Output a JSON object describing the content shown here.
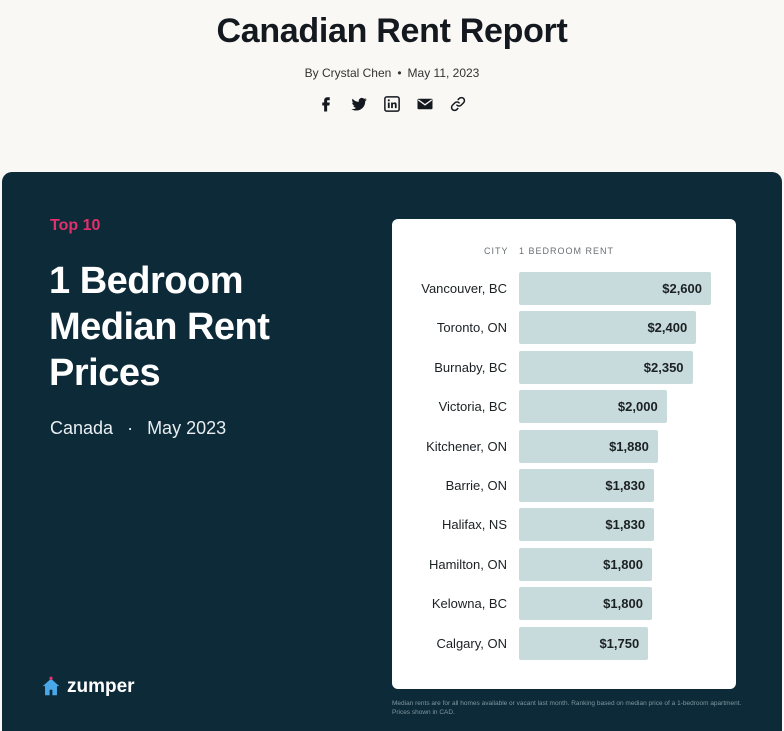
{
  "header": {
    "title": "Canadian Rent Report",
    "author": "By Crystal Chen",
    "separator": "•",
    "date": "May 11, 2023",
    "share_icons": [
      "facebook-icon",
      "twitter-icon",
      "linkedin-icon",
      "email-icon",
      "link-icon"
    ]
  },
  "card": {
    "eyebrow": "Top 10",
    "headline": "1 Bedroom Median Rent Prices",
    "region": "Canada",
    "meta_separator": "·",
    "period": "May 2023",
    "brand": "zumper",
    "footnote": "Median rents are for all homes available or vacant last month. Ranking based on median price of a 1-bedroom apartment. Prices shown in CAD."
  },
  "colors": {
    "background": "#f9f8f4",
    "card": "#0d2a38",
    "accent": "#e2306c",
    "bar": "#c8dbdc",
    "brand_icon": "#4aa8e8"
  },
  "chart_data": {
    "type": "bar",
    "orientation": "horizontal",
    "col_headers": {
      "category": "CITY",
      "value": "1 BEDROOM RENT"
    },
    "categories": [
      "Vancouver, BC",
      "Toronto, ON",
      "Burnaby, BC",
      "Victoria, BC",
      "Kitchener, ON",
      "Barrie, ON",
      "Halifax, NS",
      "Hamilton, ON",
      "Kelowna, BC",
      "Calgary, ON"
    ],
    "values": [
      2600,
      2400,
      2350,
      2000,
      1880,
      1830,
      1830,
      1800,
      1800,
      1750
    ],
    "labels": [
      "$2,600",
      "$2,400",
      "$2,350",
      "$2,000",
      "$1,880",
      "$1,830",
      "$1,830",
      "$1,800",
      "$1,800",
      "$1,750"
    ],
    "grid": false,
    "legend": false
  }
}
